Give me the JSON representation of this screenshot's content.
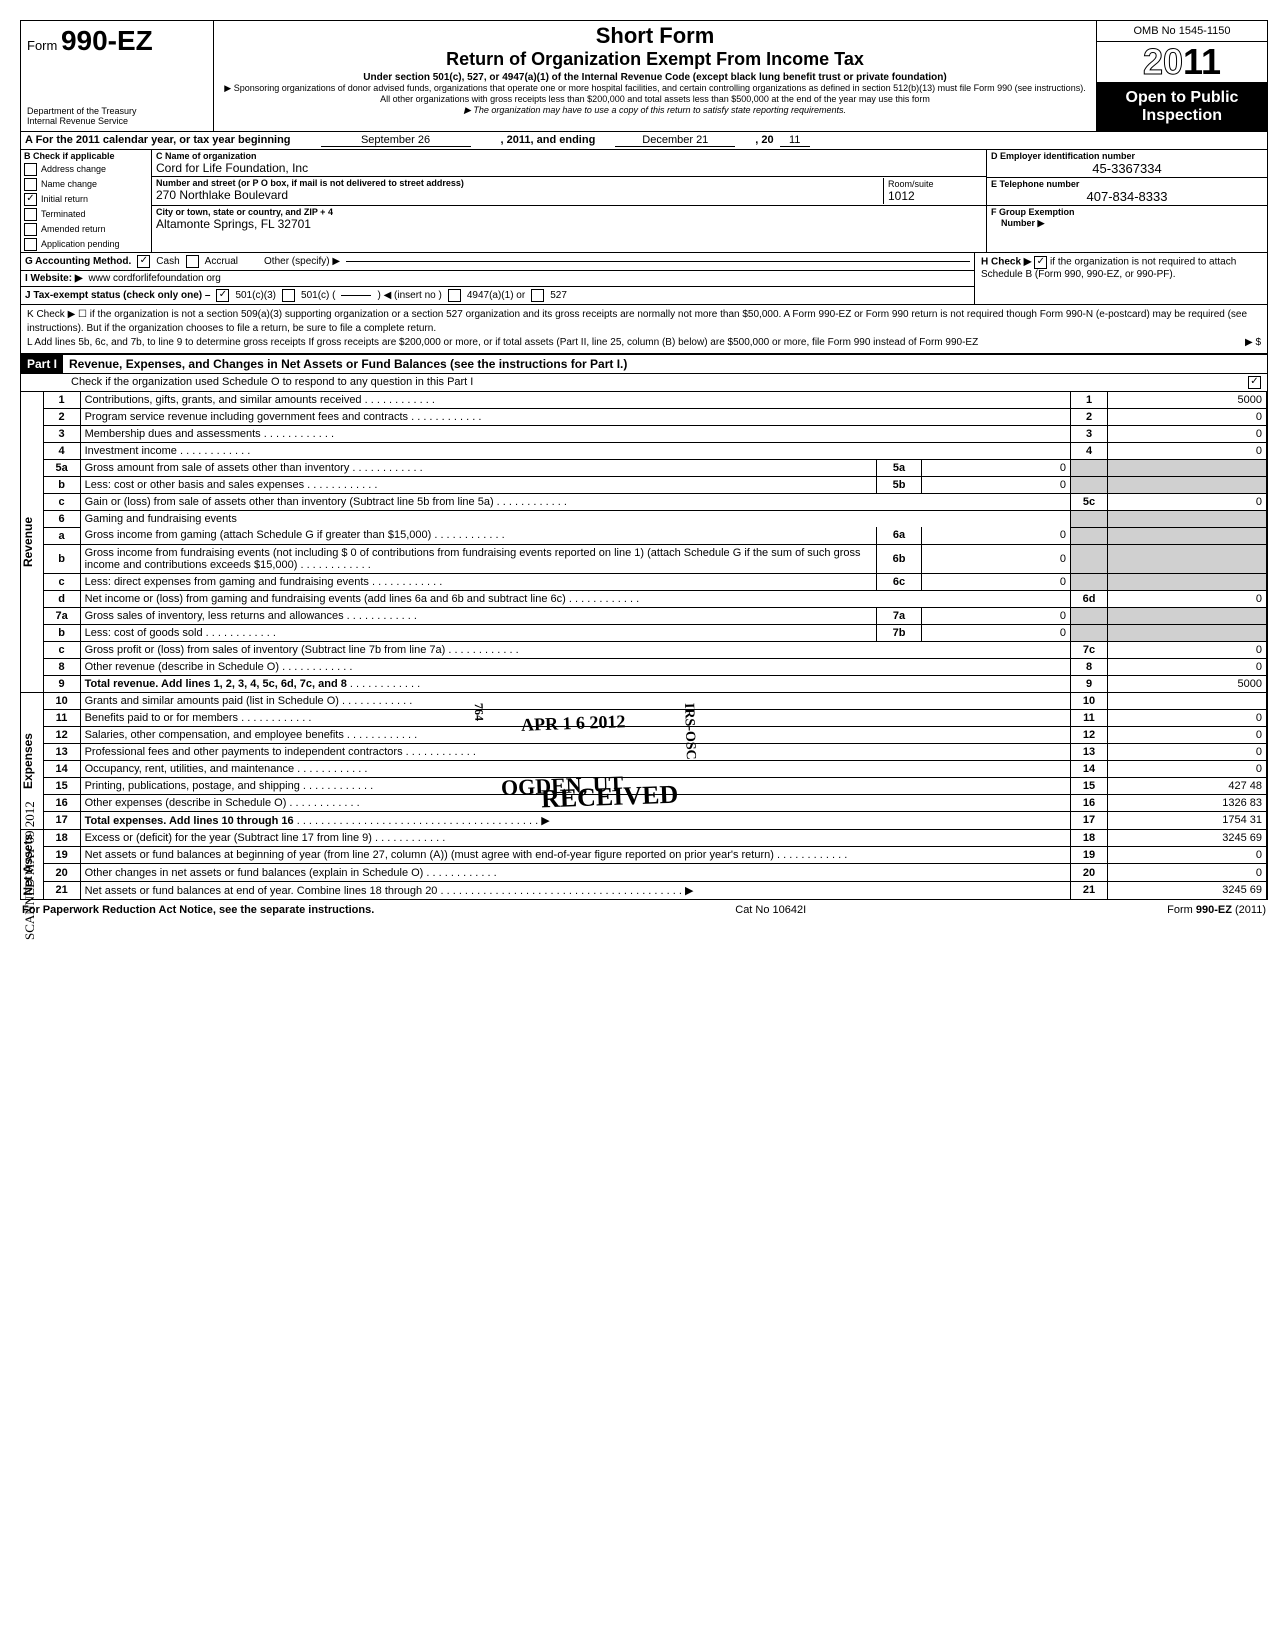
{
  "header": {
    "form_label": "Form",
    "form_number": "990-EZ",
    "dept1": "Department of the Treasury",
    "dept2": "Internal Revenue Service",
    "title1": "Short Form",
    "title2": "Return of Organization Exempt From Income Tax",
    "sub": "Under section 501(c), 527, or 4947(a)(1) of the Internal Revenue Code (except black lung benefit trust or private foundation)",
    "note1": "▶ Sponsoring organizations of donor advised funds, organizations that operate one or more hospital facilities, and certain controlling organizations as defined in section 512(b)(13) must file Form 990 (see instructions). All other organizations with gross receipts less than $200,000 and total assets less than $500,000 at the end of the year may use this form",
    "note2": "▶ The organization may have to use a copy of this return to satisfy state reporting requirements.",
    "omb": "OMB No 1545-1150",
    "year_outline": "20",
    "year_solid": "11",
    "open1": "Open to Public",
    "open2": "Inspection"
  },
  "row_a": {
    "label_a": "A For the 2011 calendar year, or tax year beginning",
    "begin": "September 26",
    "mid": ", 2011, and ending",
    "end_month": "December 21",
    "end_year_label": ", 20",
    "end_year": "11"
  },
  "section_b": {
    "b_label": "B Check if applicable",
    "checks": [
      {
        "label": "Address change",
        "checked": false
      },
      {
        "label": "Name change",
        "checked": false
      },
      {
        "label": "Initial return",
        "checked": true
      },
      {
        "label": "Terminated",
        "checked": false
      },
      {
        "label": "Amended return",
        "checked": false
      },
      {
        "label": "Application pending",
        "checked": false
      }
    ],
    "c_label": "C Name of organization",
    "c_value": "Cord for Life Foundation, Inc",
    "addr_label": "Number and street (or P O box, if mail is not delivered to street address)",
    "addr_value": "270 Northlake Boulevard",
    "room_label": "Room/suite",
    "room_value": "1012",
    "city_label": "City or town, state or country, and ZIP + 4",
    "city_value": "Altamonte Springs, FL 32701",
    "d_label": "D Employer identification number",
    "d_value": "45-3367334",
    "e_label": "E Telephone number",
    "e_value": "407-834-8333",
    "f_label": "F Group Exemption",
    "f_label2": "Number ▶"
  },
  "gij": {
    "g_label": "G Accounting Method.",
    "g_cash": "Cash",
    "g_accrual": "Accrual",
    "g_other": "Other (specify) ▶",
    "i_label": "I Website: ▶",
    "i_value": "www cordforlifefoundation org",
    "j_label": "J Tax-exempt status (check only one) –",
    "j_501c3": "501(c)(3)",
    "j_501c": "501(c) (",
    "j_insert": ") ◀ (insert no )",
    "j_4947": "4947(a)(1) or",
    "j_527": "527",
    "h_label": "H Check ▶",
    "h_text": "if the organization is not required to attach Schedule B (Form 990, 990-EZ, or 990-PF)."
  },
  "kl": {
    "k": "K Check ▶ ☐ if the organization is not a section 509(a)(3) supporting organization or a section 527 organization and its gross receipts are normally not more than $50,000. A Form 990-EZ or Form 990 return is not required though Form 990-N (e-postcard) may be required (see instructions). But if the organization chooses to file a return, be sure to file a complete return.",
    "l": "L Add lines 5b, 6c, and 7b, to line 9 to determine gross receipts  If gross receipts are $200,000 or more, or if total assets (Part II, line 25, column (B) below) are $500,000 or more, file Form 990 instead of Form 990-EZ",
    "l_arrow": "▶ $"
  },
  "part1": {
    "label": "Part I",
    "title": "Revenue, Expenses, and Changes in Net Assets or Fund Balances (see the instructions for Part I.)",
    "instr": "Check if the organization used Schedule O to respond to any question in this Part I"
  },
  "side_labels": {
    "revenue": "Revenue",
    "expenses": "Expenses",
    "netassets": "Net Assets"
  },
  "lines": [
    {
      "n": "1",
      "desc": "Contributions, gifts, grants, and similar amounts received",
      "rn": "1",
      "rv": "5000"
    },
    {
      "n": "2",
      "desc": "Program service revenue including government fees and contracts",
      "rn": "2",
      "rv": "0"
    },
    {
      "n": "3",
      "desc": "Membership dues and assessments",
      "rn": "3",
      "rv": "0"
    },
    {
      "n": "4",
      "desc": "Investment income",
      "rn": "4",
      "rv": "0"
    },
    {
      "n": "5a",
      "desc": "Gross amount from sale of assets other than inventory",
      "mn": "5a",
      "mv": "0",
      "shaded": true
    },
    {
      "n": "b",
      "desc": "Less: cost or other basis and sales expenses",
      "mn": "5b",
      "mv": "0",
      "shaded": true
    },
    {
      "n": "c",
      "desc": "Gain or (loss) from sale of assets other than inventory (Subtract line 5b from line 5a)",
      "rn": "5c",
      "rv": "0"
    },
    {
      "n": "6",
      "desc": "Gaming and fundraising events",
      "shaded": true,
      "noborder": true
    },
    {
      "n": "a",
      "desc": "Gross income from gaming (attach Schedule G if greater than $15,000)",
      "mn": "6a",
      "mv": "0",
      "shaded": true
    },
    {
      "n": "b",
      "desc": "Gross income from fundraising events (not including  $                    0 of contributions from fundraising events reported on line 1) (attach Schedule G if the sum of such gross income and contributions exceeds $15,000)",
      "mn": "6b",
      "mv": "0",
      "shaded": true
    },
    {
      "n": "c",
      "desc": "Less: direct expenses from gaming and fundraising events",
      "mn": "6c",
      "mv": "0",
      "shaded": true
    },
    {
      "n": "d",
      "desc": "Net income or (loss) from gaming and fundraising events (add lines 6a and 6b and subtract line 6c)",
      "rn": "6d",
      "rv": "0"
    },
    {
      "n": "7a",
      "desc": "Gross sales of inventory, less returns and allowances",
      "mn": "7a",
      "mv": "0",
      "shaded": true
    },
    {
      "n": "b",
      "desc": "Less: cost of goods sold",
      "mn": "7b",
      "mv": "0",
      "shaded": true
    },
    {
      "n": "c",
      "desc": "Gross profit or (loss) from sales of inventory (Subtract line 7b from line 7a)",
      "rn": "7c",
      "rv": "0"
    },
    {
      "n": "8",
      "desc": "Other revenue (describe in Schedule O)",
      "rn": "8",
      "rv": "0"
    },
    {
      "n": "9",
      "desc": "Total revenue. Add lines 1, 2, 3, 4, 5c, 6d, 7c, and 8",
      "rn": "9",
      "rv": "5000",
      "bold": true
    }
  ],
  "exp_lines": [
    {
      "n": "10",
      "desc": "Grants and similar amounts paid (list in Schedule O)",
      "rn": "10",
      "rv": ""
    },
    {
      "n": "11",
      "desc": "Benefits paid to or for members",
      "rn": "11",
      "rv": "0"
    },
    {
      "n": "12",
      "desc": "Salaries, other compensation, and employee benefits",
      "rn": "12",
      "rv": "0"
    },
    {
      "n": "13",
      "desc": "Professional fees and other payments to independent contractors",
      "rn": "13",
      "rv": "0"
    },
    {
      "n": "14",
      "desc": "Occupancy, rent, utilities, and maintenance",
      "rn": "14",
      "rv": "0"
    },
    {
      "n": "15",
      "desc": "Printing, publications, postage, and shipping",
      "rn": "15",
      "rv": "427 48"
    },
    {
      "n": "16",
      "desc": "Other expenses (describe in Schedule O)",
      "rn": "16",
      "rv": "1326 83"
    },
    {
      "n": "17",
      "desc": "Total expenses. Add lines 10 through 16",
      "rn": "17",
      "rv": "1754 31",
      "bold": true,
      "arrow": true
    }
  ],
  "na_lines": [
    {
      "n": "18",
      "desc": "Excess or (deficit) for the year (Subtract line 17 from line 9)",
      "rn": "18",
      "rv": "3245 69"
    },
    {
      "n": "19",
      "desc": "Net assets or fund balances at beginning of year (from line 27, column (A)) (must agree with end-of-year figure reported on prior year's return)",
      "rn": "19",
      "rv": "0"
    },
    {
      "n": "20",
      "desc": "Other changes in net assets or fund balances (explain in Schedule O)",
      "rn": "20",
      "rv": "0"
    },
    {
      "n": "21",
      "desc": "Net assets or fund balances at end of year. Combine lines 18 through 20",
      "rn": "21",
      "rv": "3245 69",
      "arrow": true
    }
  ],
  "stamps": {
    "received": "RECEIVED",
    "date": "APR 1 6 2012",
    "ogden": "OGDEN, UT",
    "irs": "IRS-OSC",
    "dln": "764",
    "scanned": "SCANNED MAY 09 2012"
  },
  "footer": {
    "left": "For Paperwork Reduction Act Notice, see the separate instructions.",
    "mid": "Cat No 10642I",
    "right": "Form 990-EZ (2011)"
  }
}
